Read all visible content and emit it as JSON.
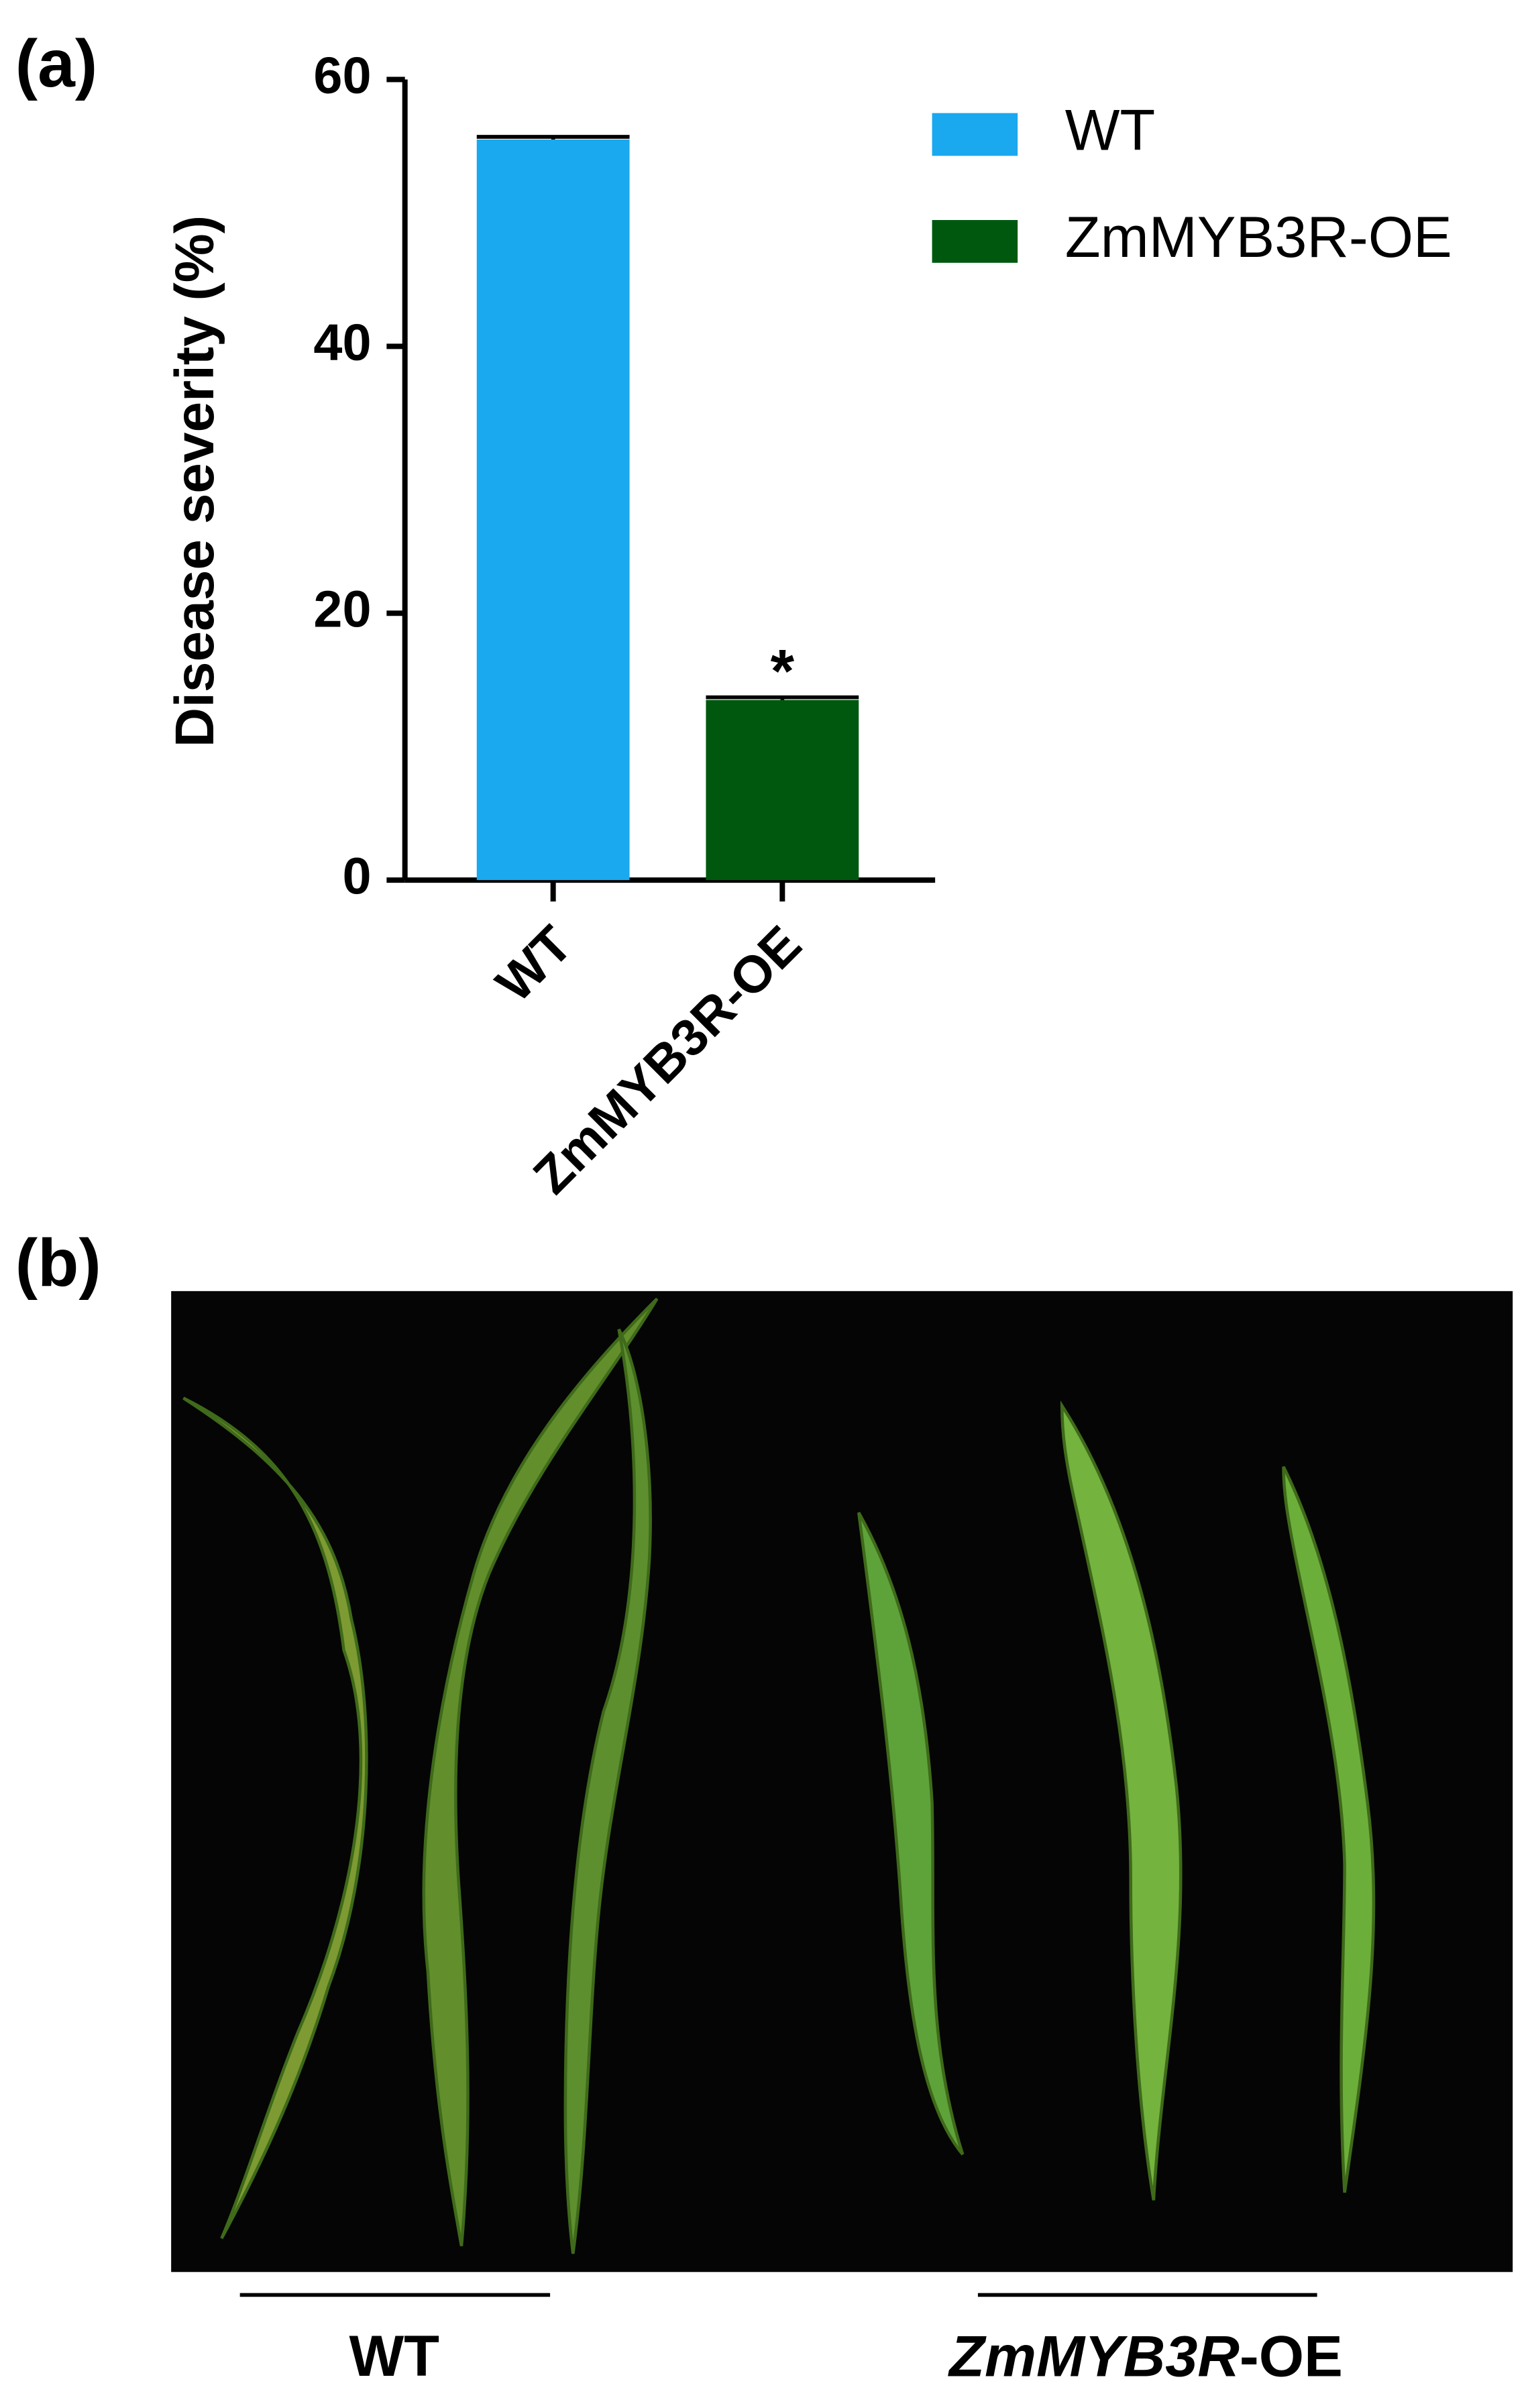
{
  "panel_labels": [
    "(a)",
    "(b)"
  ],
  "chart_data": {
    "type": "bar",
    "y_label": "Disease severity (%)",
    "categories": [
      "WT",
      "ZmMYB3R-OE"
    ],
    "series": [
      {
        "name": "WT",
        "color": "#1aa8ef",
        "values": [
          55.5,
          null
        ],
        "errors": [
          0.2,
          null
        ]
      },
      {
        "name": "ZmMYB3R-OE",
        "color": "#00580f",
        "values": [
          null,
          13.5
        ],
        "errors": [
          null,
          0.2
        ]
      }
    ],
    "annotation": "*",
    "ylim": [
      0,
      60
    ],
    "yticks": [
      0,
      20,
      40,
      60
    ],
    "legend": "top-right"
  },
  "photo_labels": {
    "wt": "WT",
    "oe_italic": "ZmMYB3R",
    "oe_suffix": "-OE"
  }
}
